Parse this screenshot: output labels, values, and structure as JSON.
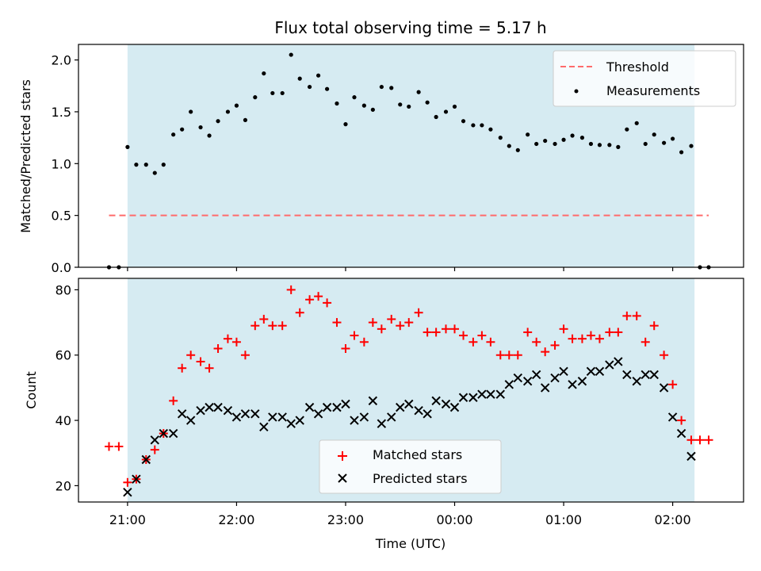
{
  "chart_data": [
    {
      "type": "scatter",
      "title": "Flux total observing time = 5.17 h",
      "xlabel": "",
      "ylabel": "Matched/Predicted stars",
      "ylim": [
        0,
        2.15
      ],
      "yticks": [
        "0.0",
        "0.5",
        "1.0",
        "1.5",
        "2.0"
      ],
      "ytick_values": [
        0,
        0.5,
        1.0,
        1.5,
        2.0
      ],
      "x_units": "hours after 21:00 UTC",
      "xlim": [
        -0.45,
        5.65
      ],
      "observing_window": [
        0,
        5.2
      ],
      "legend_position": "top-right",
      "threshold": {
        "name": "Threshold",
        "value": 0.5,
        "x_range": [
          -0.17,
          5.33
        ],
        "color": "#ff6b6b"
      },
      "series": [
        {
          "name": "Measurements",
          "color": "#000000",
          "x": [
            -0.17,
            -0.08,
            0,
            0.08,
            0.17,
            0.25,
            0.33,
            0.42,
            0.5,
            0.58,
            0.67,
            0.75,
            0.83,
            0.92,
            1.0,
            1.08,
            1.17,
            1.25,
            1.33,
            1.42,
            1.5,
            1.58,
            1.67,
            1.75,
            1.83,
            1.92,
            2.0,
            2.08,
            2.17,
            2.25,
            2.33,
            2.42,
            2.5,
            2.58,
            2.67,
            2.75,
            2.83,
            2.92,
            3.0,
            3.08,
            3.17,
            3.25,
            3.33,
            3.42,
            3.5,
            3.58,
            3.67,
            3.75,
            3.83,
            3.92,
            4.0,
            4.08,
            4.17,
            4.25,
            4.33,
            4.42,
            4.5,
            4.58,
            4.67,
            4.75,
            4.83,
            4.92,
            5.0,
            5.08,
            5.17,
            5.25,
            5.33
          ],
          "y": [
            0.0,
            0.0,
            1.16,
            0.99,
            0.99,
            0.91,
            0.99,
            1.28,
            1.33,
            1.5,
            1.35,
            1.27,
            1.41,
            1.5,
            1.56,
            1.42,
            1.64,
            1.87,
            1.68,
            1.68,
            2.05,
            1.82,
            1.74,
            1.85,
            1.72,
            1.58,
            1.38,
            1.64,
            1.56,
            1.52,
            1.74,
            1.73,
            1.57,
            1.55,
            1.69,
            1.59,
            1.45,
            1.5,
            1.55,
            1.41,
            1.37,
            1.37,
            1.33,
            1.25,
            1.17,
            1.13,
            1.28,
            1.19,
            1.22,
            1.19,
            1.23,
            1.27,
            1.25,
            1.19,
            1.18,
            1.18,
            1.16,
            1.33,
            1.39,
            1.19,
            1.28,
            1.2,
            1.24,
            1.11,
            1.17,
            0.0,
            0.0
          ]
        }
      ]
    },
    {
      "type": "scatter",
      "title": "",
      "xlabel": "Time (UTC)",
      "ylabel": "Count",
      "ylim": [
        15,
        83.5
      ],
      "yticks": [
        "20",
        "40",
        "60",
        "80"
      ],
      "ytick_values": [
        20,
        40,
        60,
        80
      ],
      "x_units": "hours after 21:00 UTC",
      "xlim": [
        -0.45,
        5.65
      ],
      "xticks": [
        "21:00",
        "22:00",
        "23:00",
        "00:00",
        "01:00",
        "02:00"
      ],
      "xtick_values": [
        0,
        1,
        2,
        3,
        4,
        5
      ],
      "observing_window": [
        0,
        5.2
      ],
      "legend_position": "lower center",
      "series": [
        {
          "name": "Matched stars",
          "color": "#ff0000",
          "marker": "+",
          "x": [
            -0.17,
            -0.08,
            0,
            0.08,
            0.17,
            0.25,
            0.33,
            0.42,
            0.5,
            0.58,
            0.67,
            0.75,
            0.83,
            0.92,
            1.0,
            1.08,
            1.17,
            1.25,
            1.33,
            1.42,
            1.5,
            1.58,
            1.67,
            1.75,
            1.83,
            1.92,
            2.0,
            2.08,
            2.17,
            2.25,
            2.33,
            2.42,
            2.5,
            2.58,
            2.67,
            2.75,
            2.83,
            2.92,
            3.0,
            3.08,
            3.17,
            3.25,
            3.33,
            3.42,
            3.5,
            3.58,
            3.67,
            3.75,
            3.83,
            3.92,
            4.0,
            4.08,
            4.17,
            4.25,
            4.33,
            4.42,
            4.5,
            4.58,
            4.67,
            4.75,
            4.83,
            4.92,
            5.0,
            5.08,
            5.17,
            5.25,
            5.33
          ],
          "y": [
            32,
            32,
            21,
            22,
            28,
            31,
            36,
            46,
            56,
            60,
            58,
            56,
            62,
            65,
            64,
            60,
            69,
            71,
            69,
            69,
            80,
            73,
            77,
            78,
            76,
            70,
            62,
            66,
            64,
            70,
            68,
            71,
            69,
            70,
            73,
            67,
            67,
            68,
            68,
            66,
            64,
            66,
            64,
            60,
            60,
            60,
            67,
            64,
            61,
            63,
            68,
            65,
            65,
            66,
            65,
            67,
            67,
            72,
            72,
            64,
            69,
            60,
            51,
            40,
            34,
            34,
            34
          ]
        },
        {
          "name": "Predicted stars",
          "color": "#000000",
          "marker": "x",
          "x": [
            0,
            0.08,
            0.17,
            0.25,
            0.33,
            0.42,
            0.5,
            0.58,
            0.67,
            0.75,
            0.83,
            0.92,
            1.0,
            1.08,
            1.17,
            1.25,
            1.33,
            1.42,
            1.5,
            1.58,
            1.67,
            1.75,
            1.83,
            1.92,
            2.0,
            2.08,
            2.17,
            2.25,
            2.33,
            2.42,
            2.5,
            2.58,
            2.67,
            2.75,
            2.83,
            2.92,
            3.0,
            3.08,
            3.17,
            3.25,
            3.33,
            3.42,
            3.5,
            3.58,
            3.67,
            3.75,
            3.83,
            3.92,
            4.0,
            4.08,
            4.17,
            4.25,
            4.33,
            4.42,
            4.5,
            4.58,
            4.67,
            4.75,
            4.83,
            4.92,
            5.0,
            5.08,
            5.17
          ],
          "y": [
            18,
            22,
            28,
            34,
            36,
            36,
            42,
            40,
            43,
            44,
            44,
            43,
            41,
            42,
            42,
            38,
            41,
            41,
            39,
            40,
            44,
            42,
            44,
            44,
            45,
            40,
            41,
            46,
            39,
            41,
            44,
            45,
            43,
            42,
            46,
            45,
            44,
            47,
            47,
            48,
            48,
            48,
            51,
            53,
            52,
            54,
            50,
            53,
            55,
            51,
            52,
            55,
            55,
            57,
            58,
            54,
            52,
            54,
            54,
            50,
            41,
            36,
            29
          ]
        }
      ]
    }
  ],
  "style": {
    "shade_color": "#add8e6",
    "shade_opacity": 0.5
  }
}
